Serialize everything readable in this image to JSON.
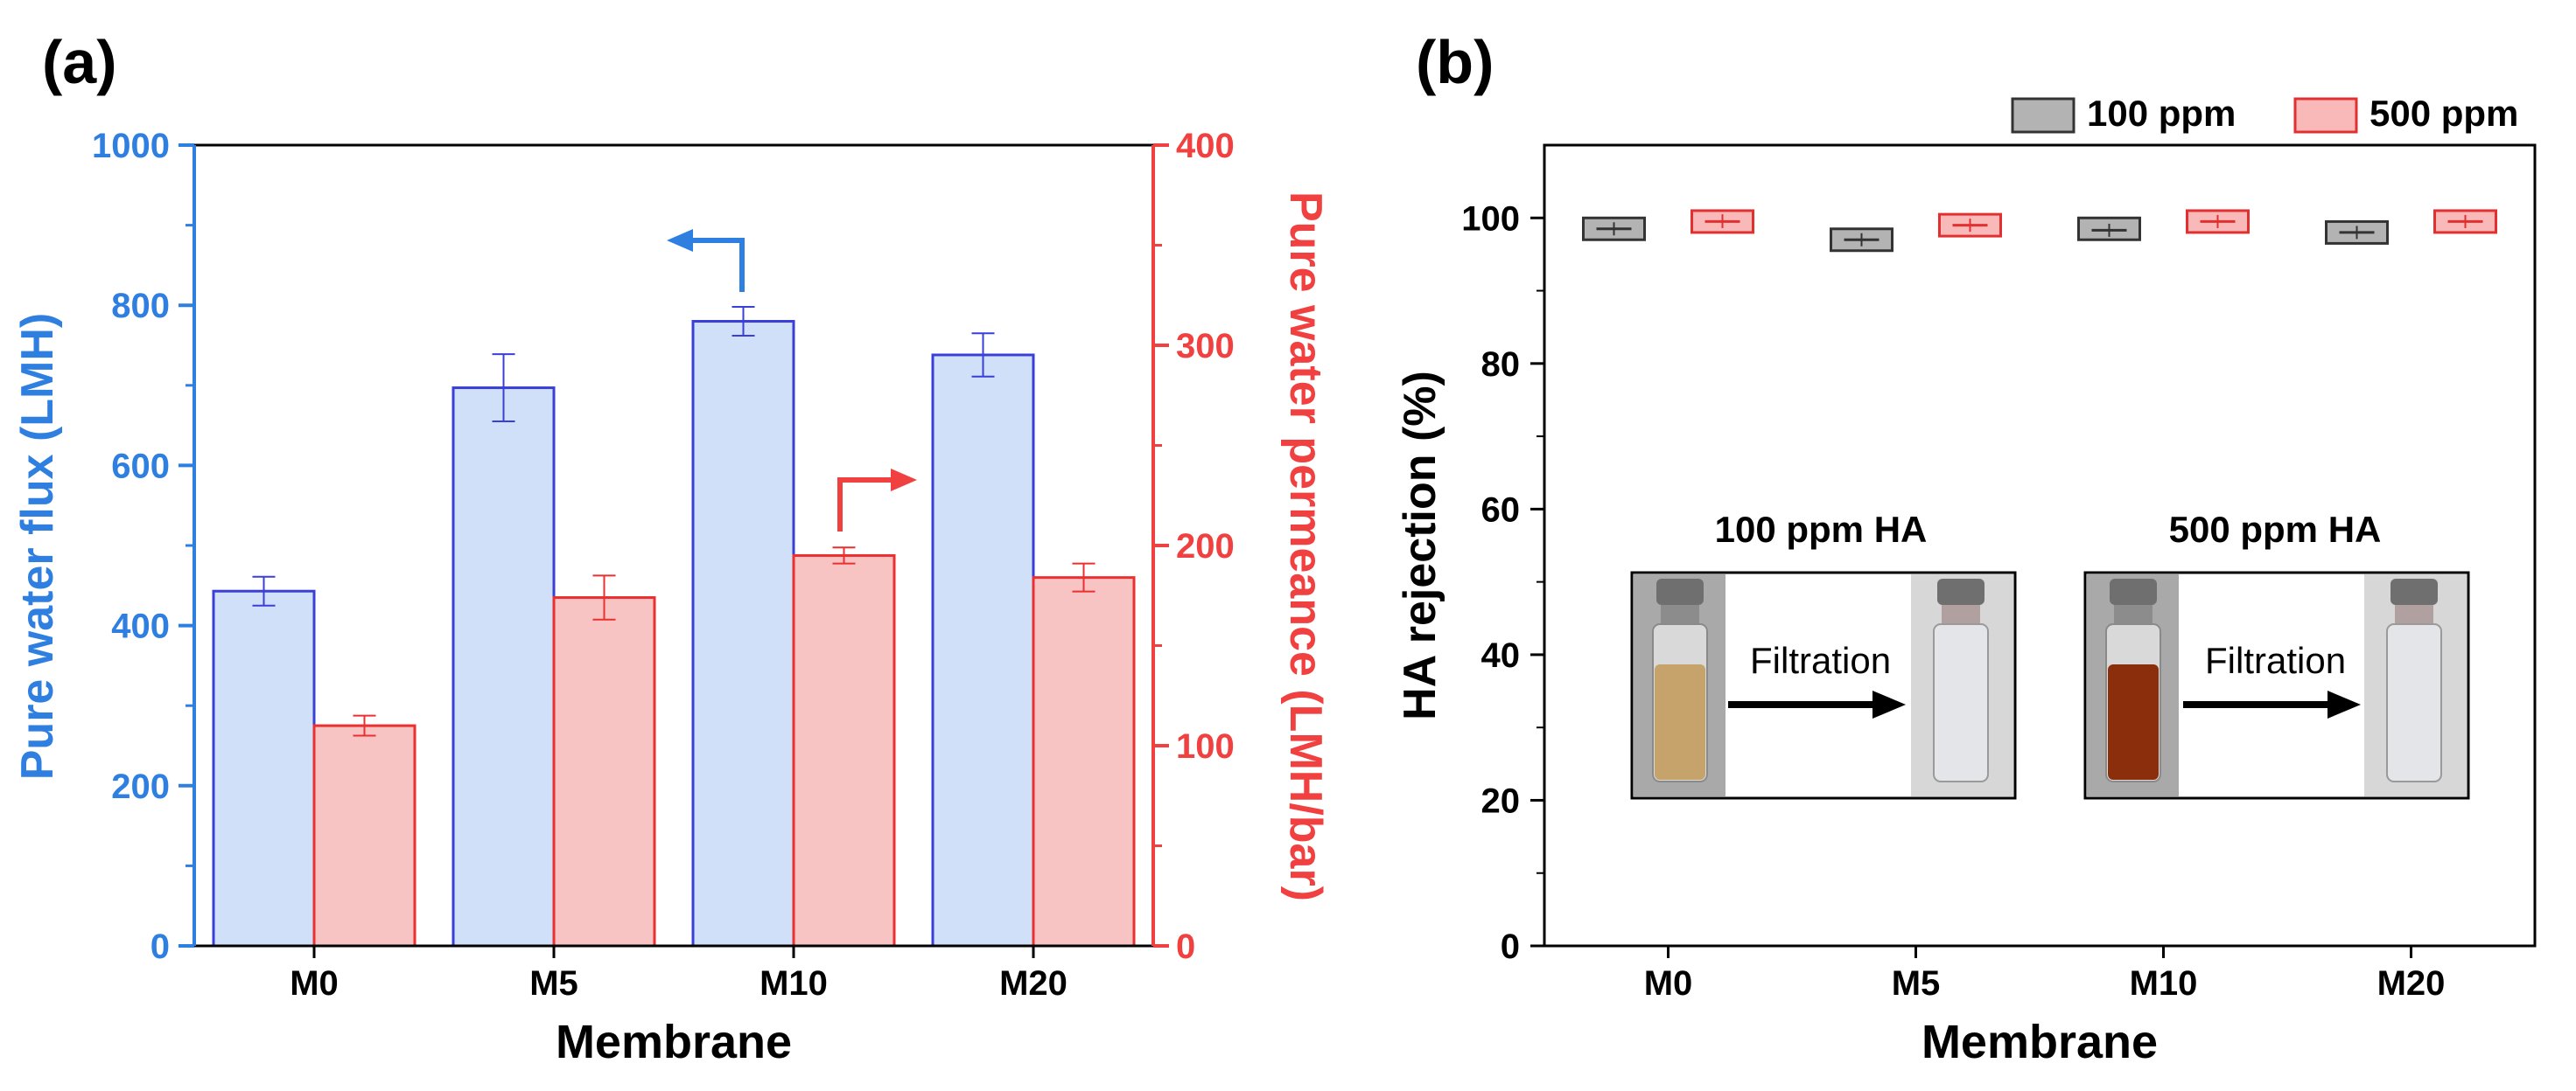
{
  "chart_data": [
    {
      "panel_label": "(a)",
      "type": "bar",
      "categories": [
        "M0",
        "M5",
        "M10",
        "M20"
      ],
      "xlabel": "Membrane",
      "y_left": {
        "label": "Pure water flux (LMH)",
        "lim": [
          0,
          1000
        ],
        "ticks": [
          0,
          200,
          400,
          600,
          800,
          1000
        ],
        "color": "#2f7fe0"
      },
      "y_right": {
        "label": "Pure water permeance (LMH/bar)",
        "lim": [
          0,
          400
        ],
        "ticks": [
          0,
          100,
          200,
          300,
          400
        ],
        "color": "#f04040"
      },
      "series": [
        {
          "name": "Pure water flux",
          "axis": "left",
          "values": [
            443,
            697,
            780,
            738
          ],
          "errors": [
            18,
            42,
            18,
            27
          ],
          "fill": "#cfe0f8",
          "stroke": "#3a3fd8"
        },
        {
          "name": "Pure water permeance",
          "axis": "right",
          "values": [
            110,
            174,
            195,
            184
          ],
          "errors": [
            5,
            11,
            4,
            7
          ],
          "fill": "#f8c3c3",
          "stroke": "#ec2f2f"
        }
      ]
    },
    {
      "panel_label": "(b)",
      "type": "box",
      "categories": [
        "M0",
        "M5",
        "M10",
        "M20"
      ],
      "xlabel": "Membrane",
      "ylabel": "HA rejection (%)",
      "ylim": [
        0,
        110
      ],
      "yticks": [
        0,
        20,
        40,
        60,
        80,
        100
      ],
      "legend": "top-right",
      "series": [
        {
          "name": "100 ppm",
          "fill": "#b3b3b3",
          "stroke": "#333333",
          "boxes": [
            {
              "low": 97.0,
              "high": 100.0,
              "mean": 98.5,
              "whisker_low": 97.6,
              "whisker_high": 99.4
            },
            {
              "low": 95.5,
              "high": 98.5,
              "mean": 97.0,
              "whisker_low": 96.1,
              "whisker_high": 97.9
            },
            {
              "low": 97.0,
              "high": 100.0,
              "mean": 98.3,
              "whisker_low": 97.4,
              "whisker_high": 99.2
            },
            {
              "low": 96.5,
              "high": 99.5,
              "mean": 98.0,
              "whisker_low": 97.1,
              "whisker_high": 98.9
            }
          ]
        },
        {
          "name": "500 ppm",
          "fill": "#f9b9b9",
          "stroke": "#e23030",
          "boxes": [
            {
              "low": 98.0,
              "high": 101.0,
              "mean": 99.5,
              "whisker_low": 98.6,
              "whisker_high": 100.5
            },
            {
              "low": 97.5,
              "high": 100.5,
              "mean": 99.0,
              "whisker_low": 98.1,
              "whisker_high": 99.9
            },
            {
              "low": 98.0,
              "high": 101.0,
              "mean": 99.5,
              "whisker_low": 98.6,
              "whisker_high": 100.4
            },
            {
              "low": 98.0,
              "high": 101.0,
              "mean": 99.5,
              "whisker_low": 98.6,
              "whisker_high": 100.4
            }
          ]
        }
      ],
      "inset": {
        "titles": [
          "100 ppm HA",
          "500 ppm HA"
        ],
        "arrow_label": "Filtration",
        "before_colors": [
          "#c7a36c",
          "#8a2e0c"
        ],
        "after_color": "#e3e5e8"
      }
    }
  ]
}
